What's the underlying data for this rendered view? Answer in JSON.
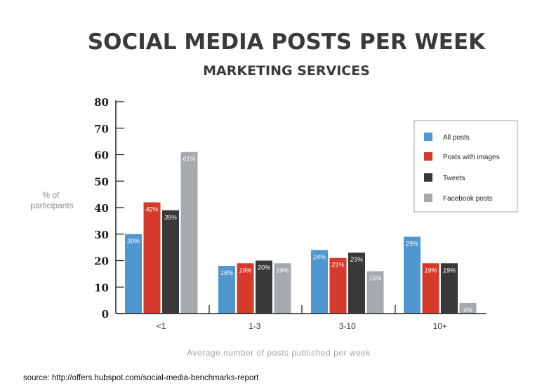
{
  "chart_data": {
    "type": "bar",
    "title": "SOCIAL MEDIA POSTS PER WEEK",
    "subtitle": "MARKETING SERVICES",
    "ylabel": "% of participants",
    "xlabel": "Average number of posts published per week",
    "ylim": [
      0,
      80
    ],
    "yticks": [
      "0",
      "10",
      "20",
      "30",
      "40",
      "50",
      "60",
      "70",
      "80"
    ],
    "categories": [
      "<1",
      "1-3",
      "3-10",
      "10+"
    ],
    "series": [
      {
        "name": "All posts",
        "values": [
          30,
          18,
          24,
          29
        ],
        "labels": [
          "30%",
          "18%",
          "24%",
          "29%"
        ]
      },
      {
        "name": "Posts with images",
        "values": [
          42,
          19,
          21,
          19
        ],
        "labels": [
          "42%",
          "19%",
          "21%",
          "19%"
        ]
      },
      {
        "name": "Tweets",
        "values": [
          39,
          20,
          23,
          19
        ],
        "labels": [
          "39%",
          "20%",
          "23%",
          "19%"
        ]
      },
      {
        "name": "Facebook posts",
        "values": [
          61,
          19,
          16,
          4
        ],
        "labels": [
          "61%",
          "19%",
          "16%",
          "4%"
        ]
      }
    ],
    "colors": [
      "#4f97d1",
      "#d63a2b",
      "#383838",
      "#a6a9ae"
    ],
    "legend_position": "top-right",
    "grid": false
  },
  "source": "source: http://offers.hubspot.com/social-media-benchmarks-report"
}
